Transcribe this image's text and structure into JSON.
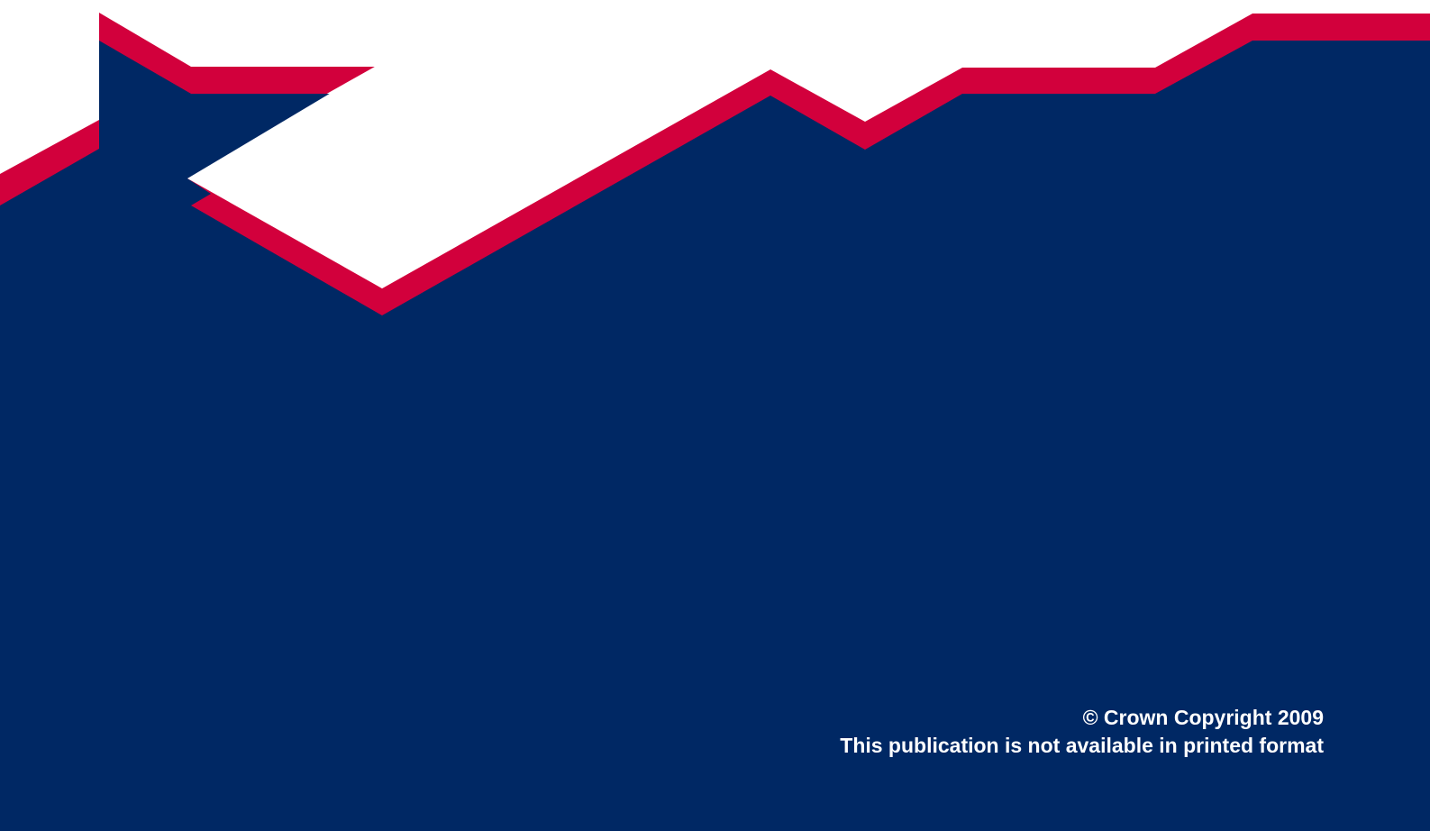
{
  "cover": {
    "copyright": "© Crown Copyright 2009",
    "availability": "This publication is not available in printed format"
  },
  "colors": {
    "navy": "#002864",
    "red": "#D2003C",
    "white": "#FFFFFF"
  }
}
